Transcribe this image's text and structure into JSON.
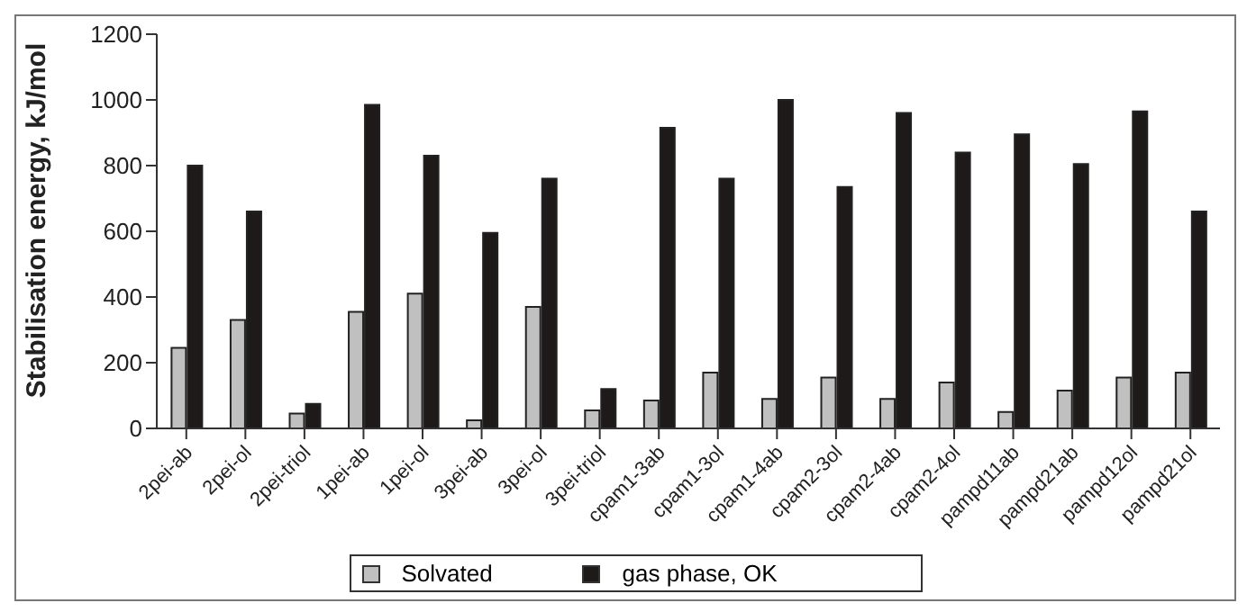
{
  "chart_data": {
    "type": "bar",
    "ylabel": "Stabilisation energy, kJ/mol",
    "categories": [
      "2pei-ab",
      "2pei-ol",
      "2pei-triol",
      "1pei-ab",
      "1pei-ol",
      "3pei-ab",
      "3pei-ol",
      "3pei-triol",
      "cpam1-3ab",
      "cpam1-3ol",
      "cpam1-4ab",
      "cpam2-3ol",
      "cpam2-4ab",
      "cpam2-4ol",
      "pampd11ab",
      "pampd21ab",
      "pampd12ol",
      "pampd21ol"
    ],
    "series": [
      {
        "name": "Solvated",
        "color": "#c0c0c0",
        "values": [
          245,
          330,
          45,
          355,
          410,
          25,
          370,
          55,
          85,
          170,
          90,
          155,
          90,
          140,
          50,
          115,
          155,
          170
        ]
      },
      {
        "name": "gas phase, OK",
        "color": "#1f1a1a",
        "values": [
          800,
          660,
          75,
          985,
          830,
          595,
          760,
          120,
          915,
          760,
          1000,
          735,
          960,
          840,
          895,
          805,
          965,
          660
        ]
      }
    ],
    "ylim": [
      0,
      1200
    ],
    "yticks": [
      0,
      200,
      400,
      600,
      800,
      1000,
      1200
    ],
    "legend": "bottom"
  }
}
